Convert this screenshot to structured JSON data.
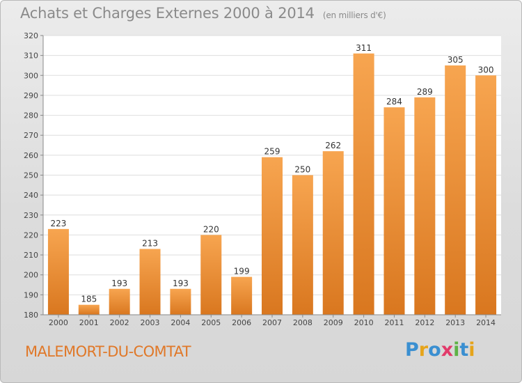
{
  "title": {
    "main": "Achats et Charges Externes 2000 à 2014",
    "unit": "(en milliers d'€)"
  },
  "commune": "MALEMORT-DU-COMTAT",
  "logo": {
    "text": "Proxiti",
    "letters": [
      {
        "char": "P",
        "color": "#3a8fd1"
      },
      {
        "char": "r",
        "color": "#e6a41a"
      },
      {
        "char": "o",
        "color": "#3a8fd1"
      },
      {
        "char": "x",
        "color": "#e23a6a"
      },
      {
        "char": "i",
        "color": "#5eb246"
      },
      {
        "char": "t",
        "color": "#3a8fd1"
      },
      {
        "char": "i",
        "color": "#e6a41a"
      }
    ]
  },
  "colors": {
    "bar_light": "#f7a550",
    "bar_dark": "#d9771f",
    "title": "#8a8a8a",
    "commune": "#e07828"
  },
  "chart_data": {
    "type": "bar",
    "title": "Achats et Charges Externes 2000 à 2014",
    "subtitle": "(en milliers d'€)",
    "xlabel": "",
    "ylabel": "",
    "ylim": [
      180,
      320
    ],
    "yticks": [
      180,
      190,
      200,
      210,
      220,
      230,
      240,
      250,
      260,
      270,
      280,
      290,
      300,
      310,
      320
    ],
    "grid": true,
    "categories": [
      "2000",
      "2001",
      "2002",
      "2003",
      "2004",
      "2005",
      "2006",
      "2007",
      "2008",
      "2009",
      "2010",
      "2011",
      "2012",
      "2013",
      "2014"
    ],
    "values": [
      223,
      185,
      193,
      213,
      193,
      220,
      199,
      259,
      250,
      262,
      311,
      284,
      289,
      305,
      300
    ]
  }
}
